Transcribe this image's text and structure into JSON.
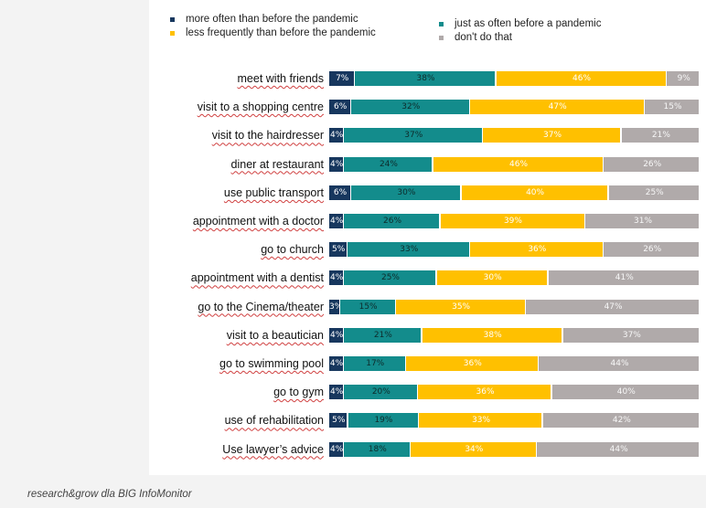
{
  "chart_data": {
    "type": "bar",
    "orientation": "horizontal",
    "stacked": true,
    "categories": [
      "meet with friends",
      "visit to a shopping centre",
      "visit to the hairdresser",
      "diner at restaurant",
      "use public transport",
      "appointment with a doctor",
      "go to church",
      "appointment with a dentist",
      "go to the Cinema/theater",
      "visit to a beautician",
      "go to swimming pool",
      "go to gym",
      "use of rehabilitation",
      "Use lawyer’s advice"
    ],
    "series": [
      {
        "name": "more often than before the pandemic",
        "color": "#17375e",
        "values": [
          7,
          6,
          4,
          4,
          6,
          4,
          5,
          4,
          3,
          4,
          4,
          4,
          5,
          4
        ]
      },
      {
        "name": "just as often before a pandemic",
        "color": "#138c8c",
        "values": [
          38,
          32,
          37,
          24,
          30,
          26,
          33,
          25,
          15,
          21,
          17,
          20,
          19,
          18
        ]
      },
      {
        "name": "less frequently than before the pandemic",
        "color": "#ffc000",
        "values": [
          46,
          47,
          37,
          46,
          40,
          39,
          36,
          30,
          35,
          38,
          36,
          36,
          33,
          34
        ]
      },
      {
        "name": "don't do that",
        "color": "#b0aaaa",
        "values": [
          9,
          15,
          21,
          26,
          25,
          31,
          26,
          41,
          47,
          37,
          44,
          40,
          42,
          44
        ]
      }
    ],
    "value_suffix": "%",
    "legend_position": "top",
    "grid": false
  },
  "source": "research&grow dla BIG InfoMonitor"
}
